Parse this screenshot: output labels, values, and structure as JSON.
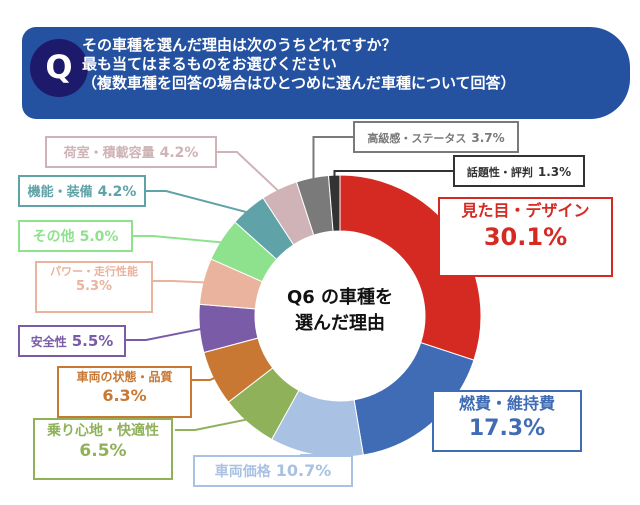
{
  "header": {
    "badge": "Q",
    "lines": [
      "その車種を選んだ理由は次のうちどれですか？",
      "最も当てはまるものをお選びください",
      "（複数車種を回答の場合はひとつめに選んだ車種について回答）"
    ]
  },
  "chart_data": {
    "type": "pie",
    "donut": true,
    "center_label": [
      "Q6 の車種を",
      "選んだ理由"
    ],
    "categories": [
      "見た目・デザイン",
      "燃費・維持費",
      "車両価格",
      "乗り心地・快適性",
      "車両の状態・品質",
      "安全性",
      "パワー・走行性能",
      "その他",
      "機能・装備",
      "荷室・積載容量",
      "高級感・ステータス",
      "話題性・評判"
    ],
    "values": [
      30.1,
      17.3,
      10.7,
      6.5,
      6.3,
      5.5,
      5.3,
      5.0,
      4.2,
      4.2,
      3.7,
      1.3
    ],
    "value_labels": [
      "30.1%",
      "17.3%",
      "10.7%",
      "6.5%",
      "6.3%",
      "5.5%",
      "5.3%",
      "5.0%",
      "4.2%",
      "4.2%",
      "3.7%",
      "1.3%"
    ],
    "colors": [
      "#d42a22",
      "#3f6cb4",
      "#a9c1e3",
      "#8fb15a",
      "#c87833",
      "#7a5ba8",
      "#eab39e",
      "#8ee28e",
      "#5fa3a8",
      "#cfb3b6",
      "#7a7a7a",
      "#333333"
    ],
    "start": "top",
    "direction": "clockwise"
  }
}
